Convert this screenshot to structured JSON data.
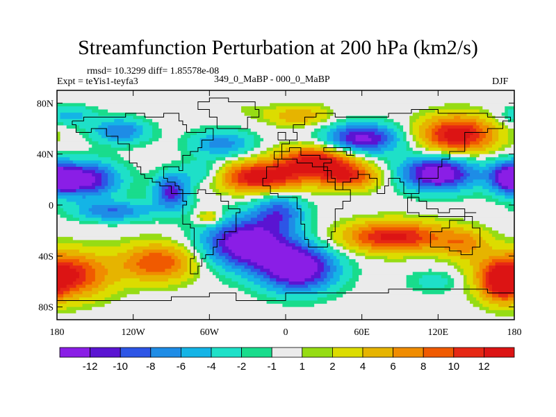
{
  "chart_data": {
    "type": "heatmap",
    "title": "Streamfunction Perturbation at 200 hPa (km2/s)",
    "rmsd_text": "rmsd= 10.3299 diff= 1.85578e-08",
    "expt_text": "Expt = teYis1-teyfa3",
    "center_text": "349_0_MaBP - 000_0_MaBP",
    "season_text": "DJF",
    "x_ticks": [
      "180",
      "120W",
      "60W",
      "0",
      "60E",
      "120E",
      "180"
    ],
    "y_ticks": [
      "80N",
      "40N",
      "0",
      "40S",
      "80S"
    ],
    "xlim": [
      -180,
      180
    ],
    "ylim": [
      -90,
      90
    ],
    "colorbar": {
      "labels": [
        "-12",
        "-10",
        "-8",
        "-6",
        "-4",
        "-2",
        "-1",
        "1",
        "2",
        "4",
        "6",
        "8",
        "10",
        "12"
      ],
      "colors": [
        "#8a1ee6",
        "#5a14d2",
        "#2d55e6",
        "#1e8ce6",
        "#14b4e6",
        "#1ee0c8",
        "#19dc8c",
        "#ebebeb",
        "#96dc14",
        "#dcdc00",
        "#e6b400",
        "#f08c00",
        "#f05a00",
        "#e62814",
        "#dc1414"
      ]
    },
    "field_centers": [
      [
        -160,
        20,
        -14,
        28,
        14
      ],
      [
        -130,
        58,
        -8,
        22,
        10
      ],
      [
        -175,
        -55,
        13,
        35,
        18
      ],
      [
        -100,
        -45,
        10,
        30,
        15
      ],
      [
        -135,
        -5,
        -8,
        30,
        8
      ],
      [
        -90,
        10,
        -11,
        14,
        14
      ],
      [
        -50,
        48,
        -7,
        25,
        11
      ],
      [
        -65,
        25,
        -5,
        18,
        10
      ],
      [
        -20,
        22,
        14,
        35,
        12
      ],
      [
        25,
        35,
        13,
        30,
        12
      ],
      [
        50,
        22,
        10,
        25,
        10
      ],
      [
        -30,
        -30,
        -15,
        35,
        20
      ],
      [
        10,
        -50,
        -15,
        30,
        18
      ],
      [
        -5,
        -5,
        -8,
        20,
        14
      ],
      [
        60,
        52,
        -13,
        30,
        12
      ],
      [
        135,
        55,
        14,
        30,
        15
      ],
      [
        120,
        25,
        -15,
        30,
        14
      ],
      [
        175,
        22,
        -10,
        15,
        12
      ],
      [
        85,
        -25,
        13,
        40,
        12
      ],
      [
        140,
        -30,
        6,
        20,
        12
      ],
      [
        170,
        -62,
        8,
        15,
        15
      ],
      [
        -60,
        -10,
        6,
        10,
        6
      ],
      [
        10,
        70,
        6,
        25,
        8
      ],
      [
        -30,
        75,
        1,
        15,
        8
      ],
      [
        -170,
        70,
        -5,
        20,
        8
      ],
      [
        120,
        -60,
        -3,
        25,
        10
      ]
    ]
  }
}
